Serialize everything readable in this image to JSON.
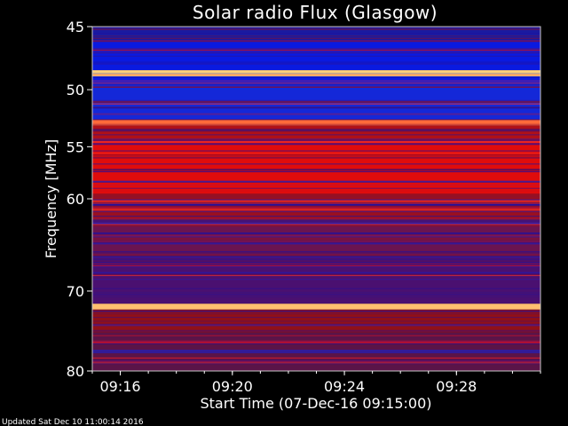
{
  "chart_data": {
    "type": "heatmap",
    "title": "Solar radio Flux (Glasgow)",
    "xlabel": "Start Time (07-Dec-16 09:15:00)",
    "ylabel": "Frequency [MHz]",
    "x_ticks": [
      "09:16",
      "09:20",
      "09:24",
      "09:28"
    ],
    "y_ticks": [
      "45",
      "50",
      "55",
      "60",
      "70",
      "80"
    ],
    "y_scale": "log",
    "ylim": [
      80,
      45
    ],
    "xlim_minutes": [
      15,
      31
    ],
    "bands": [
      {
        "from_mhz": 45.0,
        "to_mhz": 46.0,
        "color": "#1a1aa0"
      },
      {
        "from_mhz": 46.0,
        "to_mhz": 48.4,
        "color": "#0a1ae0"
      },
      {
        "from_mhz": 48.4,
        "to_mhz": 48.9,
        "color": "#ffd27a"
      },
      {
        "from_mhz": 48.9,
        "to_mhz": 49.6,
        "color": "#0a1ae0"
      },
      {
        "from_mhz": 49.6,
        "to_mhz": 52.6,
        "color": "#1428d8"
      },
      {
        "from_mhz": 52.6,
        "to_mhz": 53.1,
        "color": "#ff6a3a"
      },
      {
        "from_mhz": 53.1,
        "to_mhz": 54.5,
        "color": "#b01018"
      },
      {
        "from_mhz": 54.5,
        "to_mhz": 59.5,
        "color": "#e00c0c"
      },
      {
        "from_mhz": 59.5,
        "to_mhz": 62.0,
        "color": "#9a1020"
      },
      {
        "from_mhz": 62.0,
        "to_mhz": 66.0,
        "color": "#6a1450"
      },
      {
        "from_mhz": 66.0,
        "to_mhz": 71.5,
        "color": "#4a1070"
      },
      {
        "from_mhz": 71.5,
        "to_mhz": 72.2,
        "color": "#ffc070"
      },
      {
        "from_mhz": 72.2,
        "to_mhz": 75.0,
        "color": "#901018"
      },
      {
        "from_mhz": 75.0,
        "to_mhz": 80.0,
        "color": "#5a1448"
      }
    ],
    "colorscale": [
      "#000080",
      "#0000ff",
      "#800060",
      "#ff0000",
      "#ffff80"
    ]
  },
  "footer": "Updated Sat Dec 10 11:00:14 2016"
}
